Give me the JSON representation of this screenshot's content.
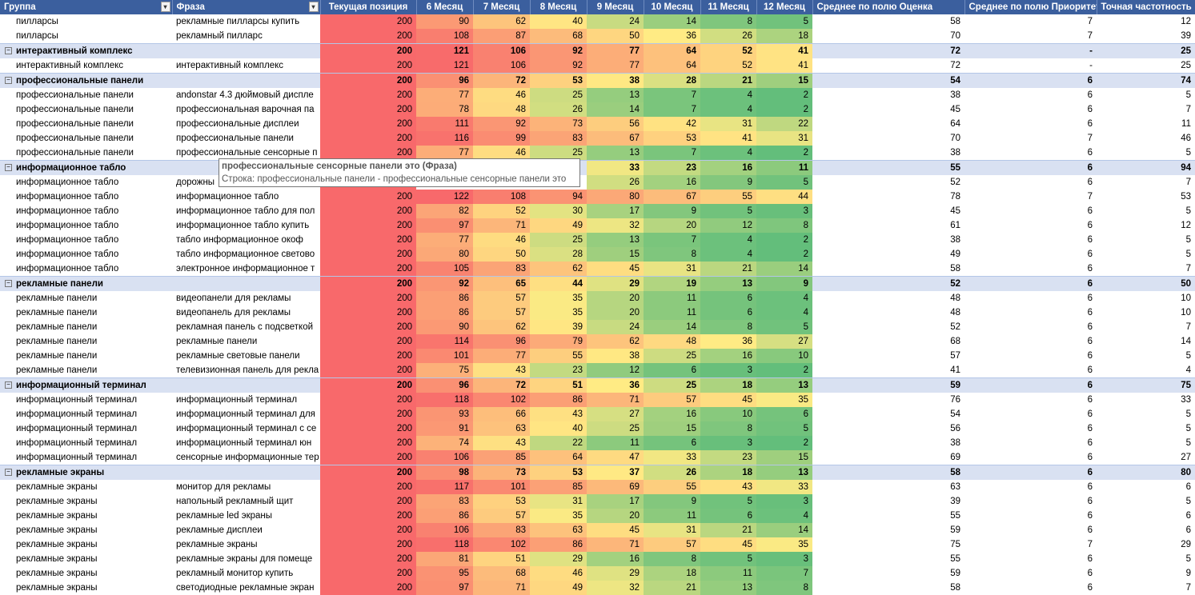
{
  "table": {
    "columns": [
      "Группа",
      "Фраза",
      "Текущая позиция",
      "6 Месяц",
      "7 Месяц",
      "8 Месяц",
      "9 Месяц",
      "10 Месяц",
      "11 Месяц",
      "12 Месяц",
      "Среднее по полю Оценка",
      "Среднее по полю Приоритет",
      "Точная частотность"
    ],
    "position_color": "#f8696b",
    "month_scale": {
      "low": "#63be7b",
      "mid": "#ffeb84",
      "high": "#f8696b"
    },
    "rows": [
      {
        "group": "пилларсы",
        "phrase": "рекламные пилларсы купить",
        "position": 200,
        "months": [
          90,
          62,
          40,
          24,
          14,
          8,
          5
        ],
        "score": 58,
        "priority": 7,
        "frequency": 12
      },
      {
        "group": "пилларсы",
        "phrase": "рекламный пилларс",
        "position": 200,
        "months": [
          108,
          87,
          68,
          50,
          36,
          26,
          18
        ],
        "score": 70,
        "priority": 7,
        "frequency": 39
      },
      {
        "group": "интерактивный комплекс",
        "subtotal": true,
        "position": 200,
        "months": [
          121,
          106,
          92,
          77,
          64,
          52,
          41
        ],
        "score": 72,
        "priority": "-",
        "frequency": 25
      },
      {
        "group": "интерактивный комплекс",
        "phrase": "интерактивный комплекс",
        "position": 200,
        "months": [
          121,
          106,
          92,
          77,
          64,
          52,
          41
        ],
        "score": 72,
        "priority": "-",
        "frequency": 25
      },
      {
        "group": "профессиональные панели",
        "subtotal": true,
        "position": 200,
        "months": [
          96,
          72,
          53,
          38,
          28,
          21,
          15
        ],
        "score": 54,
        "priority": 6,
        "frequency": 74
      },
      {
        "group": "профессиональные панели",
        "phrase": "andonstar 4.3 дюймовый диспле",
        "position": 200,
        "months": [
          77,
          46,
          25,
          13,
          7,
          4,
          2
        ],
        "score": 38,
        "priority": 6,
        "frequency": 5
      },
      {
        "group": "профессиональные панели",
        "phrase": "профессиональная варочная па",
        "position": 200,
        "months": [
          78,
          48,
          26,
          14,
          7,
          4,
          2
        ],
        "score": 45,
        "priority": 6,
        "frequency": 7
      },
      {
        "group": "профессиональные панели",
        "phrase": "профессиональные дисплеи",
        "position": 200,
        "months": [
          111,
          92,
          73,
          56,
          42,
          31,
          22
        ],
        "score": 64,
        "priority": 6,
        "frequency": 11
      },
      {
        "group": "профессиональные панели",
        "phrase": "профессиональные панели",
        "position": 200,
        "months": [
          116,
          99,
          83,
          67,
          53,
          41,
          31
        ],
        "score": 70,
        "priority": 7,
        "frequency": 46
      },
      {
        "group": "профессиональные панели",
        "phrase": "профессиональные сенсорные п",
        "position": 200,
        "months": [
          77,
          46,
          25,
          13,
          7,
          4,
          2
        ],
        "score": 38,
        "priority": 6,
        "frequency": 5
      },
      {
        "group": "информационное табло",
        "subtotal": true,
        "position": null,
        "months": [
          null,
          null,
          null,
          33,
          23,
          16,
          11
        ],
        "score": 55,
        "priority": 6,
        "frequency": 94
      },
      {
        "group": "информационное табло",
        "phrase": "дорожны",
        "position": null,
        "months": [
          null,
          null,
          null,
          26,
          16,
          9,
          5
        ],
        "score": 52,
        "priority": 6,
        "frequency": 7
      },
      {
        "group": "информационное табло",
        "phrase": "информационное табло",
        "position": 200,
        "months": [
          122,
          108,
          94,
          80,
          67,
          55,
          44
        ],
        "score": 78,
        "priority": 7,
        "frequency": 53
      },
      {
        "group": "информационное табло",
        "phrase": "информационное табло для пол",
        "position": 200,
        "months": [
          82,
          52,
          30,
          17,
          9,
          5,
          3
        ],
        "score": 45,
        "priority": 6,
        "frequency": 5
      },
      {
        "group": "информационное табло",
        "phrase": "информационное табло купить",
        "position": 200,
        "months": [
          97,
          71,
          49,
          32,
          20,
          12,
          8
        ],
        "score": 61,
        "priority": 6,
        "frequency": 12
      },
      {
        "group": "информационное табло",
        "phrase": "табло информационное окоф",
        "position": 200,
        "months": [
          77,
          46,
          25,
          13,
          7,
          4,
          2
        ],
        "score": 38,
        "priority": 6,
        "frequency": 5
      },
      {
        "group": "информационное табло",
        "phrase": "табло информационное светово",
        "position": 200,
        "months": [
          80,
          50,
          28,
          15,
          8,
          4,
          2
        ],
        "score": 49,
        "priority": 6,
        "frequency": 5
      },
      {
        "group": "информационное табло",
        "phrase": "электронное информационное т",
        "position": 200,
        "months": [
          105,
          83,
          62,
          45,
          31,
          21,
          14
        ],
        "score": 58,
        "priority": 6,
        "frequency": 7
      },
      {
        "group": "рекламные панели",
        "subtotal": true,
        "position": 200,
        "months": [
          92,
          65,
          44,
          29,
          19,
          13,
          9
        ],
        "score": 52,
        "priority": 6,
        "frequency": 50
      },
      {
        "group": "рекламные панели",
        "phrase": "видеопанели для рекламы",
        "position": 200,
        "months": [
          86,
          57,
          35,
          20,
          11,
          6,
          4
        ],
        "score": 48,
        "priority": 6,
        "frequency": 10
      },
      {
        "group": "рекламные панели",
        "phrase": "видеопанель для рекламы",
        "position": 200,
        "months": [
          86,
          57,
          35,
          20,
          11,
          6,
          4
        ],
        "score": 48,
        "priority": 6,
        "frequency": 10
      },
      {
        "group": "рекламные панели",
        "phrase": "рекламная панель с подсветкой",
        "position": 200,
        "months": [
          90,
          62,
          39,
          24,
          14,
          8,
          5
        ],
        "score": 52,
        "priority": 6,
        "frequency": 7
      },
      {
        "group": "рекламные панели",
        "phrase": "рекламные панели",
        "position": 200,
        "months": [
          114,
          96,
          79,
          62,
          48,
          36,
          27
        ],
        "score": 68,
        "priority": 6,
        "frequency": 14
      },
      {
        "group": "рекламные панели",
        "phrase": "рекламные световые панели",
        "position": 200,
        "months": [
          101,
          77,
          55,
          38,
          25,
          16,
          10
        ],
        "score": 57,
        "priority": 6,
        "frequency": 5
      },
      {
        "group": "рекламные панели",
        "phrase": "телевизионная панель для рекла",
        "position": 200,
        "months": [
          75,
          43,
          23,
          12,
          6,
          3,
          2
        ],
        "score": 41,
        "priority": 6,
        "frequency": 4
      },
      {
        "group": "информационный терминал",
        "subtotal": true,
        "position": 200,
        "months": [
          96,
          72,
          51,
          36,
          25,
          18,
          13
        ],
        "score": 59,
        "priority": 6,
        "frequency": 75
      },
      {
        "group": "информационный терминал",
        "phrase": "информационный терминал",
        "position": 200,
        "months": [
          118,
          102,
          86,
          71,
          57,
          45,
          35
        ],
        "score": 76,
        "priority": 6,
        "frequency": 33
      },
      {
        "group": "информационный терминал",
        "phrase": "информационный терминал для",
        "position": 200,
        "months": [
          93,
          66,
          43,
          27,
          16,
          10,
          6
        ],
        "score": 54,
        "priority": 6,
        "frequency": 5
      },
      {
        "group": "информационный терминал",
        "phrase": "информационный терминал с се",
        "position": 200,
        "months": [
          91,
          63,
          40,
          25,
          15,
          8,
          5
        ],
        "score": 56,
        "priority": 6,
        "frequency": 5
      },
      {
        "group": "информационный терминал",
        "phrase": "информационный терминал юн",
        "position": 200,
        "months": [
          74,
          43,
          22,
          11,
          6,
          3,
          2
        ],
        "score": 38,
        "priority": 6,
        "frequency": 5
      },
      {
        "group": "информационный терминал",
        "phrase": "сенсорные информационные тер",
        "position": 200,
        "months": [
          106,
          85,
          64,
          47,
          33,
          23,
          15
        ],
        "score": 69,
        "priority": 6,
        "frequency": 27
      },
      {
        "group": "рекламные экраны",
        "subtotal": true,
        "position": 200,
        "months": [
          98,
          73,
          53,
          37,
          26,
          18,
          13
        ],
        "score": 58,
        "priority": 6,
        "frequency": 80
      },
      {
        "group": "рекламные экраны",
        "phrase": "монитор для рекламы",
        "position": 200,
        "months": [
          117,
          101,
          85,
          69,
          55,
          43,
          33
        ],
        "score": 63,
        "priority": 6,
        "frequency": 6
      },
      {
        "group": "рекламные экраны",
        "phrase": "напольный рекламный щит",
        "position": 200,
        "months": [
          83,
          53,
          31,
          17,
          9,
          5,
          3
        ],
        "score": 39,
        "priority": 6,
        "frequency": 5
      },
      {
        "group": "рекламные экраны",
        "phrase": "рекламные led экраны",
        "position": 200,
        "months": [
          86,
          57,
          35,
          20,
          11,
          6,
          4
        ],
        "score": 55,
        "priority": 6,
        "frequency": 6
      },
      {
        "group": "рекламные экраны",
        "phrase": "рекламные дисплеи",
        "position": 200,
        "months": [
          106,
          83,
          63,
          45,
          31,
          21,
          14
        ],
        "score": 59,
        "priority": 6,
        "frequency": 6
      },
      {
        "group": "рекламные экраны",
        "phrase": "рекламные экраны",
        "position": 200,
        "months": [
          118,
          102,
          86,
          71,
          57,
          45,
          35
        ],
        "score": 75,
        "priority": 7,
        "frequency": 29
      },
      {
        "group": "рекламные экраны",
        "phrase": "рекламные экраны для помеще",
        "position": 200,
        "months": [
          81,
          51,
          29,
          16,
          8,
          5,
          3
        ],
        "score": 55,
        "priority": 6,
        "frequency": 5
      },
      {
        "group": "рекламные экраны",
        "phrase": "рекламный монитор купить",
        "position": 200,
        "months": [
          95,
          68,
          46,
          29,
          18,
          11,
          7
        ],
        "score": 59,
        "priority": 6,
        "frequency": 9
      },
      {
        "group": "рекламные экраны",
        "phrase": "светодиодные рекламные экран",
        "position": 200,
        "months": [
          97,
          71,
          49,
          32,
          21,
          13,
          8
        ],
        "score": 58,
        "priority": 6,
        "frequency": 7
      }
    ]
  },
  "tooltip": {
    "title": "профессиональные сенсорные панели это (Фраза)",
    "text": "Строка: профессиональные панели - профессиональные сенсорные панели это"
  }
}
